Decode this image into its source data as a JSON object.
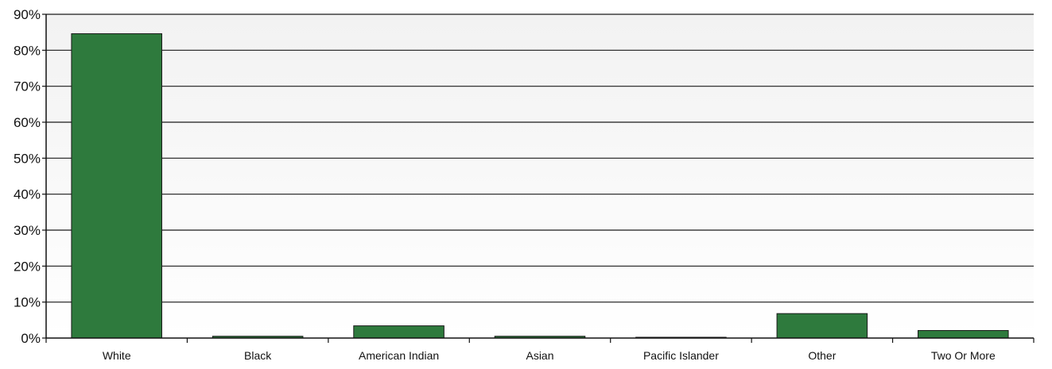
{
  "chart_data": {
    "type": "bar",
    "title": "",
    "xlabel": "",
    "ylabel": "",
    "categories": [
      "White",
      "Black",
      "American Indian",
      "Asian",
      "Pacific Islander",
      "Other",
      "Two Or More"
    ],
    "values": [
      84.6,
      0.5,
      3.4,
      0.5,
      0.1,
      6.8,
      2.1
    ],
    "ylim": [
      0,
      90
    ],
    "yticks": [
      0,
      10,
      20,
      30,
      40,
      50,
      60,
      70,
      80,
      90
    ],
    "ytick_labels": [
      "0%",
      "10%",
      "20%",
      "30%",
      "40%",
      "50%",
      "60%",
      "70%",
      "80%",
      "90%"
    ],
    "grid": true,
    "legend": "none",
    "colors": {
      "bar": "#2e7a3d",
      "bar_edge": "#1a1a1a",
      "plot_bg_top": "#f2f2f2",
      "plot_bg_bottom": "#ffffff",
      "grid": "#1a1a1a"
    }
  }
}
